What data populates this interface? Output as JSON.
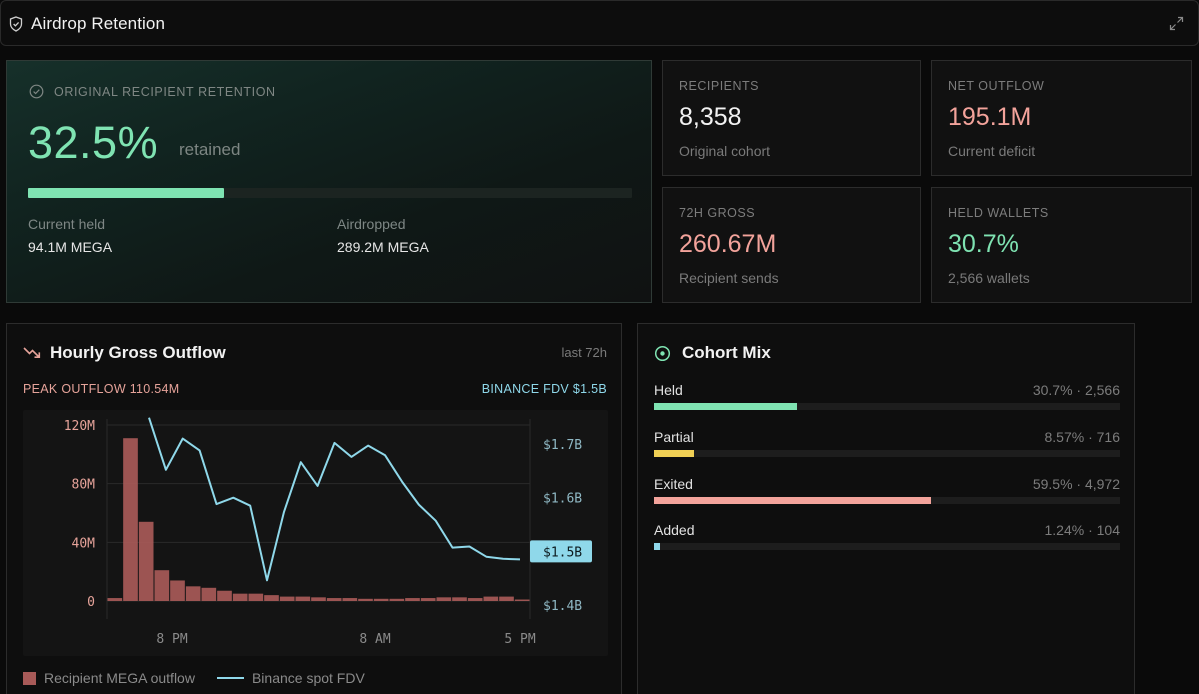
{
  "header": {
    "title": "Airdrop Retention",
    "icon": "shield-icon",
    "expand_icon": "expand-icon"
  },
  "hero": {
    "label": "ORIGINAL RECIPIENT RETENTION",
    "percent": "32.5%",
    "retained_label": "retained",
    "progress": 0.325,
    "current_held_label": "Current held",
    "current_held_value": "94.1M MEGA",
    "airdropped_label": "Airdropped",
    "airdropped_value": "289.2M MEGA",
    "accent": "#7fe3b2"
  },
  "stats": [
    {
      "label": "RECIPIENTS",
      "value": "8,358",
      "sub": "Original cohort",
      "color": "#f2f2f2"
    },
    {
      "label": "NET OUTFLOW",
      "value": "195.1M",
      "sub": "Current deficit",
      "color": "#f3a39b"
    },
    {
      "label": "72H GROSS",
      "value": "260.67M",
      "sub": "Recipient sends",
      "color": "#f3a39b"
    },
    {
      "label": "HELD WALLETS",
      "value": "30.7%",
      "sub": "2,566 wallets",
      "color": "#7fe3b2"
    }
  ],
  "outflow": {
    "title": "Hourly Gross Outflow",
    "range": "last 72h",
    "peak": "PEAK OUTFLOW 110.54M",
    "fdv": "BINANCE FDV $1.5B",
    "legend_bar": "Recipient MEGA outflow",
    "legend_line": "Binance spot FDV"
  },
  "chart_data": {
    "type": "bar",
    "x_ticks": [
      "8 PM",
      "8 AM",
      "5 PM"
    ],
    "y_ticks_left": [
      "120M",
      "80M",
      "40M",
      "0"
    ],
    "y_ticks_right": [
      "$1.7B",
      "$1.6B",
      "$1.5B",
      "$1.4B"
    ],
    "ylim_left": [
      0,
      120
    ],
    "ylim_right": [
      1.4,
      1.7
    ],
    "current_fdv_label": "$1.5B",
    "series": [
      {
        "name": "Recipient MEGA outflow",
        "type": "bar",
        "color": "#a85a58",
        "values": [
          2,
          111,
          54,
          21,
          14,
          10,
          9,
          7,
          5,
          5,
          4,
          3,
          3,
          2.5,
          2,
          2,
          1.5,
          1.5,
          1.5,
          2,
          2,
          2.5,
          2.5,
          2,
          3,
          3,
          1
        ]
      },
      {
        "name": "Binance spot FDV",
        "type": "line",
        "color": "#8fd8ea",
        "values": [
          1.749,
          1.652,
          1.71,
          1.688,
          1.588,
          1.6,
          1.585,
          1.446,
          1.573,
          1.666,
          1.622,
          1.702,
          1.676,
          1.697,
          1.679,
          1.63,
          1.587,
          1.557,
          1.507,
          1.509,
          1.49,
          1.486,
          1.485
        ]
      }
    ]
  },
  "mix": {
    "title": "Cohort Mix",
    "rows": [
      {
        "name": "Held",
        "value": "30.7% · 2,566",
        "pct": 30.7,
        "color": "#7fe3b2"
      },
      {
        "name": "Partial",
        "value": "8.57% · 716",
        "pct": 8.57,
        "color": "#f0d055"
      },
      {
        "name": "Exited",
        "value": "59.5% · 4,972",
        "pct": 59.5,
        "color": "#f3a39b"
      },
      {
        "name": "Added",
        "value": "1.24% · 104",
        "pct": 1.24,
        "color": "#8fd8ea"
      }
    ]
  }
}
